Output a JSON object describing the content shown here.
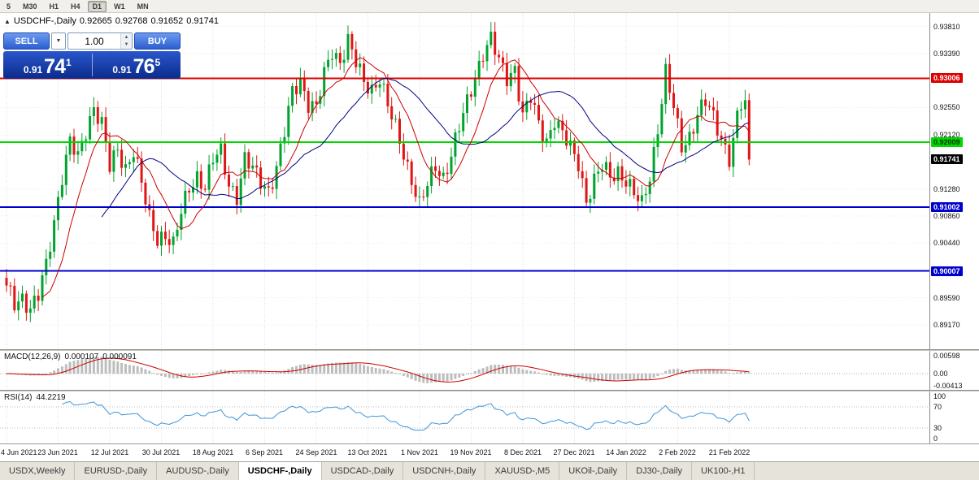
{
  "toolbar": {
    "timeframes": [
      {
        "label": "5",
        "active": false
      },
      {
        "label": "M30",
        "active": false
      },
      {
        "label": "H1",
        "active": false
      },
      {
        "label": "H4",
        "active": false
      },
      {
        "label": "D1",
        "active": true
      },
      {
        "label": "W1",
        "active": false
      },
      {
        "label": "MN",
        "active": false
      }
    ]
  },
  "chart_header": {
    "symbol_line": "USDCHF-,Daily",
    "open": "0.92665",
    "high": "0.92768",
    "low": "0.91652",
    "close": "0.91741"
  },
  "trade_panel": {
    "sell_label": "SELL",
    "buy_label": "BUY",
    "volume": "1.00",
    "sell": {
      "prefix": "0.91",
      "big": "74",
      "pip": "1"
    },
    "buy": {
      "prefix": "0.91",
      "big": "76",
      "pip": "5"
    }
  },
  "price_axis": {
    "ticks": [
      "0.93810",
      "0.93390",
      "0.92550",
      "0.92120",
      "0.91280",
      "0.90860",
      "0.90440",
      "0.89590",
      "0.89170"
    ],
    "tick_values": [
      0.9381,
      0.9339,
      0.9255,
      0.9212,
      0.9128,
      0.9086,
      0.9044,
      0.8959,
      0.8917
    ],
    "line_labels": [
      {
        "text": "0.93006",
        "value": 0.93006,
        "bg": "#dd0000",
        "fg": "#ffffff"
      },
      {
        "text": "0.92009",
        "value": 0.92009,
        "bg": "#00d800",
        "fg": "#003300"
      },
      {
        "text": "0.91741",
        "value": 0.91741,
        "bg": "#000000",
        "fg": "#ffffff"
      },
      {
        "text": "0.91002",
        "value": 0.91002,
        "bg": "#0000cc",
        "fg": "#ffffff"
      },
      {
        "text": "0.90007",
        "value": 0.90007,
        "bg": "#0000cc",
        "fg": "#ffffff"
      }
    ]
  },
  "indicators": {
    "macd": {
      "label": "MACD(12,26,9)",
      "value_main": "0.000107",
      "value_signal": "0.000091",
      "axis": [
        "0.00598",
        "0.00",
        "-0.00413"
      ]
    },
    "rsi": {
      "label": "RSI(14)",
      "value": "44.2219",
      "axis": [
        "100",
        "70",
        "30",
        "0"
      ]
    }
  },
  "time_axis": {
    "labels": [
      "4 Jun 2021",
      "23 Jun 2021",
      "12 Jul 2021",
      "30 Jul 2021",
      "18 Aug 2021",
      "6 Sep 2021",
      "24 Sep 2021",
      "13 Oct 2021",
      "1 Nov 2021",
      "19 Nov 2021",
      "8 Dec 2021",
      "27 Dec 2021",
      "14 Jan 2022",
      "2 Feb 2022",
      "21 Feb 2022"
    ]
  },
  "tabs": [
    {
      "label": "USDX,Weekly",
      "active": false
    },
    {
      "label": "EURUSD-,Daily",
      "active": false
    },
    {
      "label": "AUDUSD-,Daily",
      "active": false
    },
    {
      "label": "USDCHF-,Daily",
      "active": true
    },
    {
      "label": "USDCAD-,Daily",
      "active": false
    },
    {
      "label": "USDCNH-,Daily",
      "active": false
    },
    {
      "label": "XAUUSD-,M5",
      "active": false
    },
    {
      "label": "UKOil-,Daily",
      "active": false
    },
    {
      "label": "DJ30-,Daily",
      "active": false
    },
    {
      "label": "UK100-,H1",
      "active": false
    }
  ],
  "colors": {
    "candle_up": "#00a32e",
    "candle_down": "#e01616",
    "ma_fast": "#cc0000",
    "ma_slow": "#000080",
    "hline_red": "#dd0000",
    "hline_green": "#00d800",
    "hline_blue": "#0000cc",
    "macd_hist": "#bdbdbd",
    "macd_signal": "#cc0000",
    "rsi_line": "#3f95d8"
  },
  "chart_data": {
    "type": "candlestick",
    "symbol": "USDCHF-",
    "timeframe": "Daily",
    "title": "USDCHF-,Daily",
    "current_ohlc": {
      "open": 0.92665,
      "high": 0.92768,
      "low": 0.91652,
      "close": 0.91741
    },
    "bars": 188,
    "ylim": [
      0.8879,
      0.9402
    ],
    "x_label_bar_indices": [
      0,
      13,
      26,
      39,
      52,
      65,
      78,
      91,
      104,
      117,
      130,
      143,
      156,
      169,
      182
    ],
    "close_anchors": [
      [
        0,
        0.8978
      ],
      [
        2,
        0.8952
      ],
      [
        4,
        0.8962
      ],
      [
        6,
        0.894
      ],
      [
        8,
        0.896
      ],
      [
        10,
        0.901
      ],
      [
        12,
        0.908
      ],
      [
        14,
        0.915
      ],
      [
        16,
        0.92
      ],
      [
        18,
        0.9175
      ],
      [
        20,
        0.922
      ],
      [
        22,
        0.9258
      ],
      [
        24,
        0.923
      ],
      [
        26,
        0.916
      ],
      [
        28,
        0.9188
      ],
      [
        30,
        0.9162
      ],
      [
        32,
        0.919
      ],
      [
        34,
        0.9135
      ],
      [
        36,
        0.908
      ],
      [
        38,
        0.9052
      ],
      [
        40,
        0.906
      ],
      [
        42,
        0.904
      ],
      [
        44,
        0.909
      ],
      [
        46,
        0.913
      ],
      [
        48,
        0.915
      ],
      [
        50,
        0.9132
      ],
      [
        52,
        0.9172
      ],
      [
        54,
        0.9185
      ],
      [
        56,
        0.9138
      ],
      [
        58,
        0.9118
      ],
      [
        60,
        0.9172
      ],
      [
        62,
        0.9158
      ],
      [
        64,
        0.9142
      ],
      [
        66,
        0.9128
      ],
      [
        68,
        0.916
      ],
      [
        70,
        0.9215
      ],
      [
        72,
        0.928
      ],
      [
        74,
        0.93
      ],
      [
        76,
        0.9262
      ],
      [
        78,
        0.9252
      ],
      [
        80,
        0.9305
      ],
      [
        82,
        0.9345
      ],
      [
        84,
        0.9328
      ],
      [
        86,
        0.9358
      ],
      [
        88,
        0.9322
      ],
      [
        90,
        0.9295
      ],
      [
        92,
        0.9285
      ],
      [
        94,
        0.9302
      ],
      [
        96,
        0.9255
      ],
      [
        98,
        0.9222
      ],
      [
        100,
        0.9185
      ],
      [
        102,
        0.9145
      ],
      [
        104,
        0.9102
      ],
      [
        106,
        0.9132
      ],
      [
        108,
        0.9165
      ],
      [
        110,
        0.9148
      ],
      [
        112,
        0.9182
      ],
      [
        114,
        0.9222
      ],
      [
        116,
        0.9262
      ],
      [
        118,
        0.9305
      ],
      [
        120,
        0.9342
      ],
      [
        122,
        0.936
      ],
      [
        124,
        0.9325
      ],
      [
        126,
        0.9302
      ],
      [
        128,
        0.9318
      ],
      [
        130,
        0.9242
      ],
      [
        132,
        0.9268
      ],
      [
        134,
        0.9228
      ],
      [
        136,
        0.9205
      ],
      [
        138,
        0.9238
      ],
      [
        140,
        0.9212
      ],
      [
        142,
        0.919
      ],
      [
        144,
        0.917
      ],
      [
        146,
        0.9112
      ],
      [
        148,
        0.914
      ],
      [
        150,
        0.9162
      ],
      [
        152,
        0.9148
      ],
      [
        154,
        0.9158
      ],
      [
        156,
        0.9142
      ],
      [
        158,
        0.9118
      ],
      [
        160,
        0.9103
      ],
      [
        162,
        0.915
      ],
      [
        164,
        0.9225
      ],
      [
        166,
        0.9308
      ],
      [
        168,
        0.9252
      ],
      [
        170,
        0.9195
      ],
      [
        172,
        0.9212
      ],
      [
        174,
        0.9245
      ],
      [
        176,
        0.9262
      ],
      [
        178,
        0.9238
      ],
      [
        180,
        0.921
      ],
      [
        182,
        0.9178
      ],
      [
        183,
        0.9205
      ],
      [
        184,
        0.9238
      ],
      [
        185,
        0.9258
      ],
      [
        186,
        0.92665
      ],
      [
        187,
        0.91741
      ]
    ],
    "hlines": [
      {
        "price": 0.93006,
        "color_key": "hline_red"
      },
      {
        "price": 0.92009,
        "color_key": "hline_green"
      },
      {
        "price": 0.91002,
        "color_key": "hline_blue"
      },
      {
        "price": 0.90007,
        "color_key": "hline_blue"
      }
    ],
    "moving_averages": [
      {
        "period": 10,
        "color_key": "ma_fast"
      },
      {
        "period": 25,
        "color_key": "ma_slow"
      }
    ],
    "macd": {
      "fast": 12,
      "slow": 26,
      "signal": 9,
      "axis_max": 0.00598,
      "axis_min": -0.00413,
      "current_main": 0.000107,
      "current_signal": 9.1e-05
    },
    "rsi": {
      "period": 14,
      "current": 44.2219,
      "levels": [
        70,
        30
      ],
      "range": [
        0,
        100
      ]
    }
  }
}
